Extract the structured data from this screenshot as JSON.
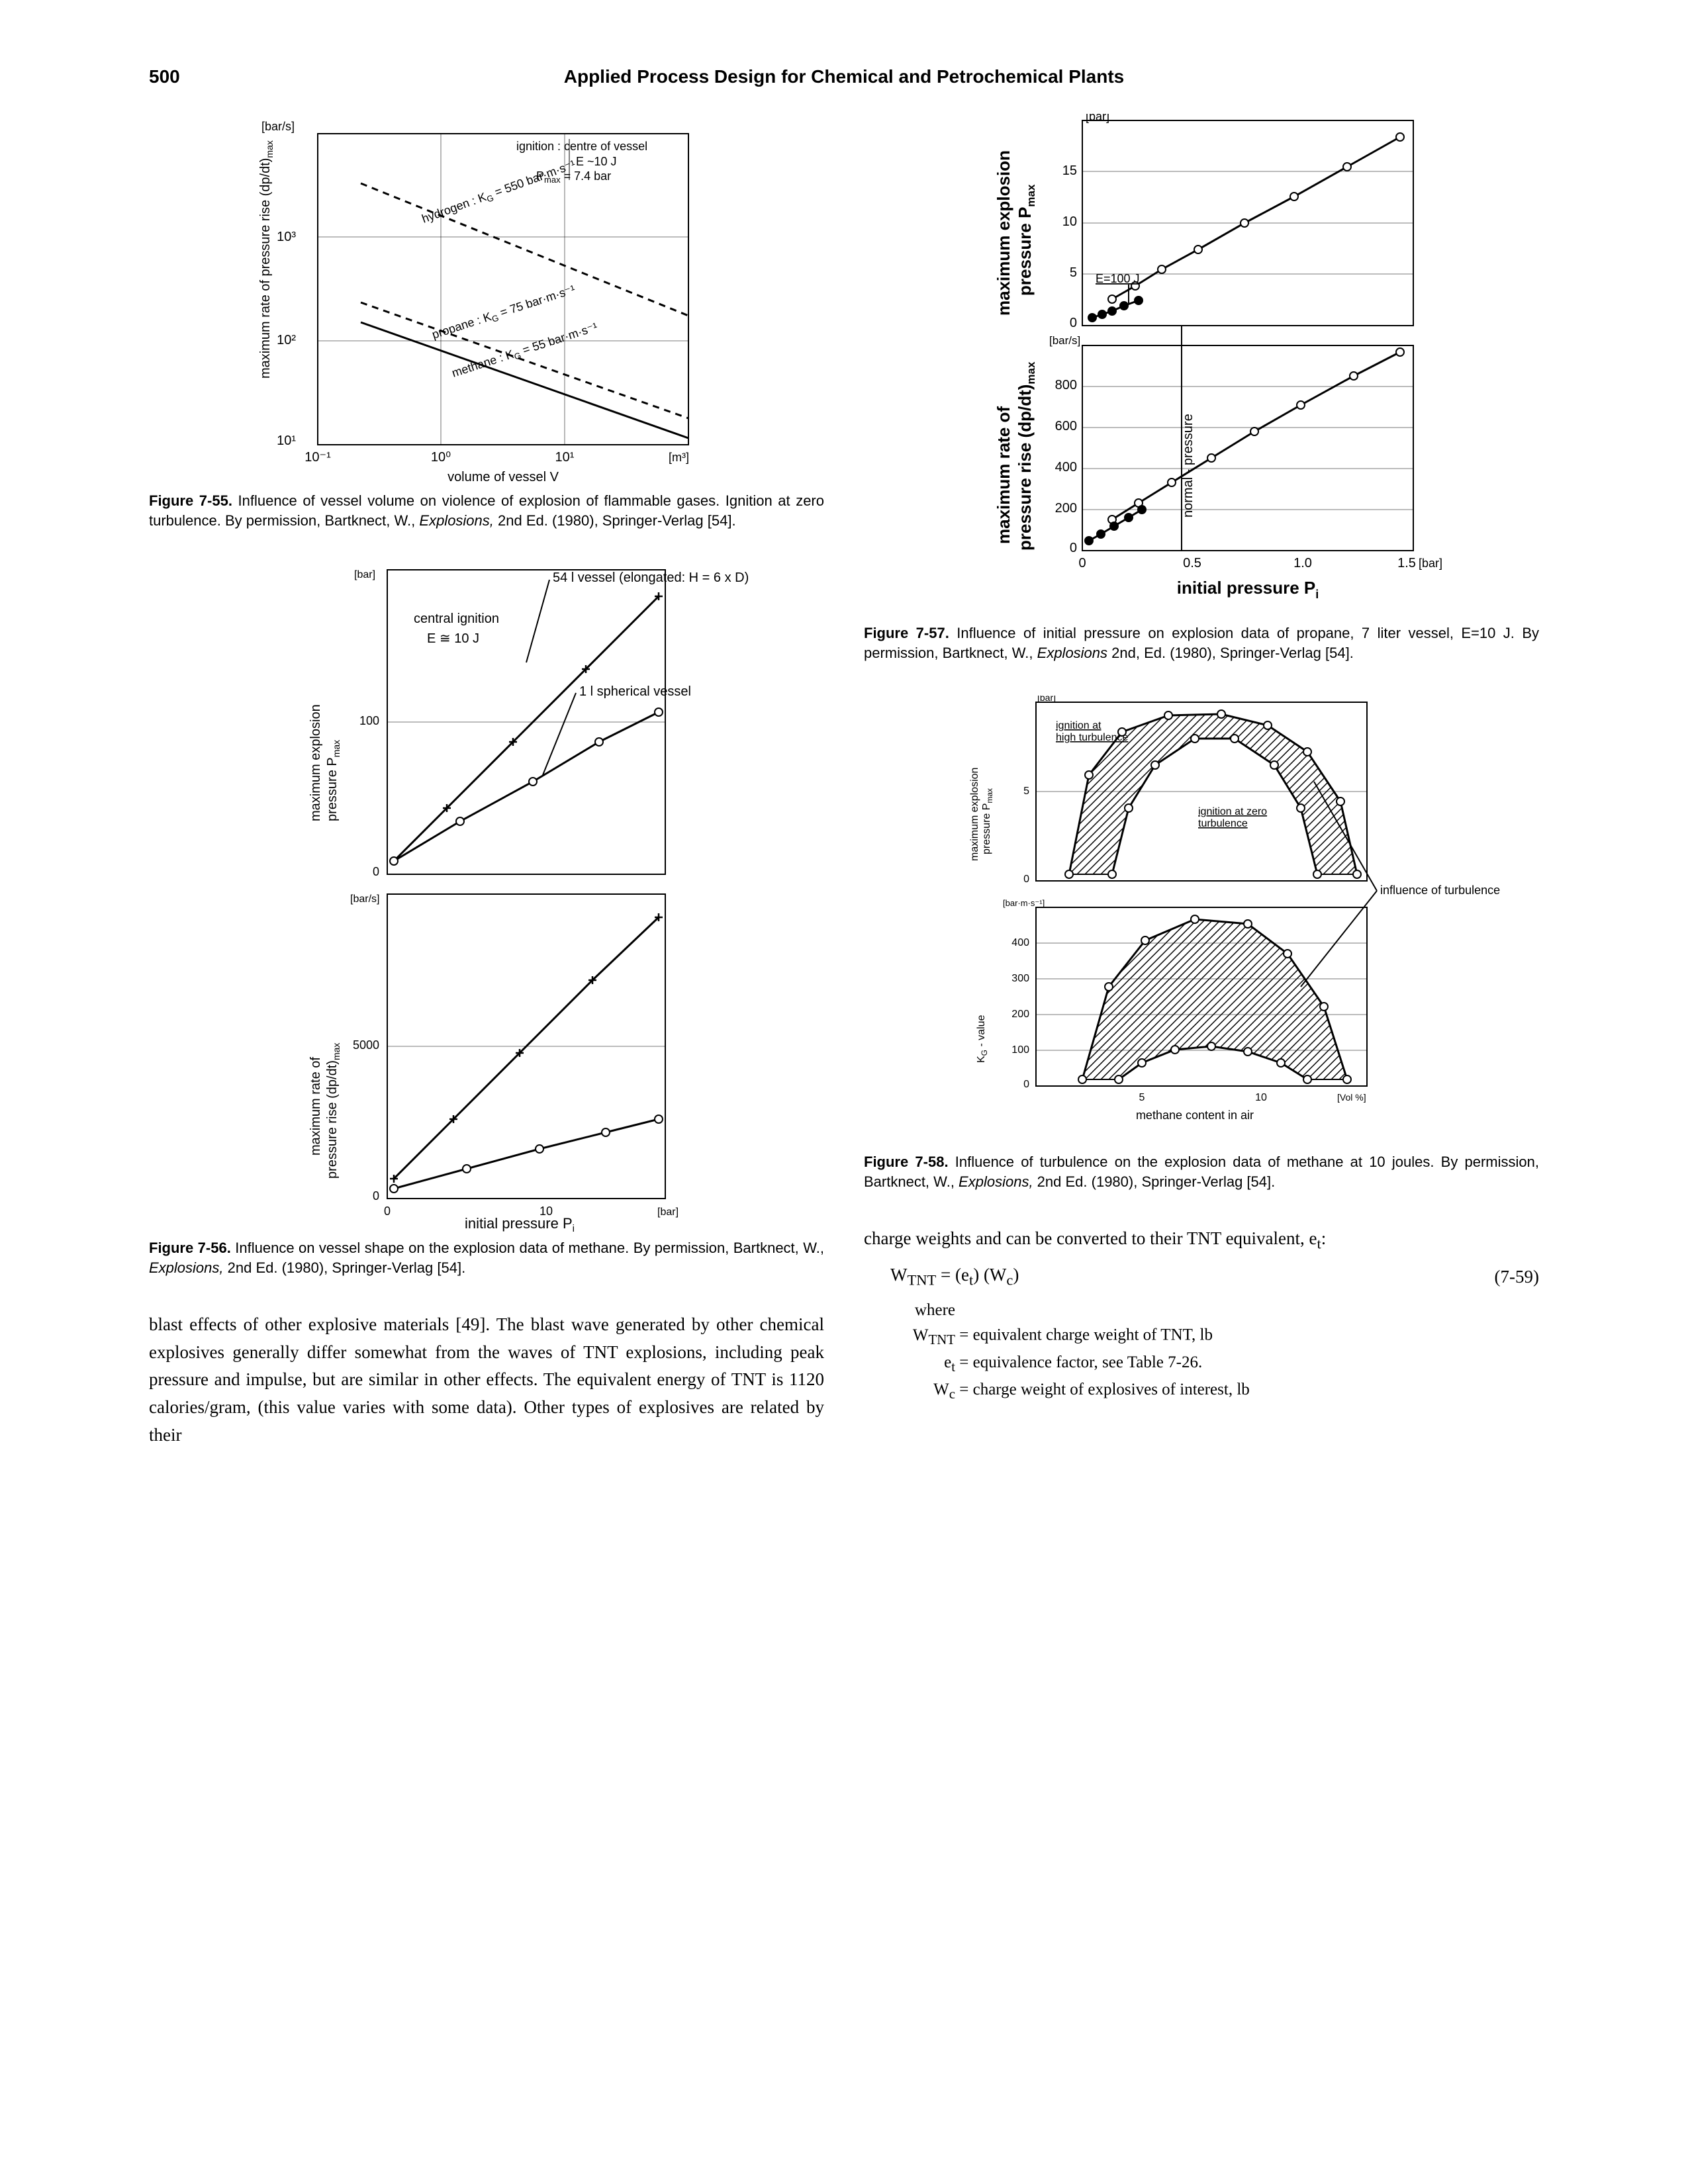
{
  "page_number": "500",
  "header_title": "Applied Process Design for Chemical and Petrochemical Plants",
  "fig55": {
    "caption_bold": "Figure 7-55.",
    "caption_rest": " Influence of vessel volume on violence of explosion of flammable gases. Ignition at zero turbulence. By permission, Bartknect, W., ",
    "caption_italic": "Explosions,",
    "caption_tail": " 2nd Ed. (1980), Springer-Verlag [54].",
    "y_unit": "[bar/s]",
    "y_label": "maximum rate of pressure rise  (dp/dt)",
    "y_label_sub": "max",
    "x_unit": "[m³]",
    "x_label": "volume of vessel  V",
    "ignition_text": "ignition : centre of vessel",
    "energy_text": "E ~10 J",
    "pmax_text": "P",
    "pmax_sub": "max",
    "pmax_val": "= 7.4 bar",
    "y_ticks": [
      "10¹",
      "10²",
      "10³"
    ],
    "x_ticks": [
      "10⁻¹",
      "10⁰",
      "10¹"
    ],
    "series": [
      {
        "label": "hydrogen : K",
        "sub": "G",
        "tail": " = 550 bar·m·s⁻¹",
        "dash": true,
        "p1": [
          65,
          75
        ],
        "p2": [
          560,
          275
        ]
      },
      {
        "label": "propane : K",
        "sub": "G",
        "tail": " = 75 bar·m·s⁻¹",
        "dash": true,
        "p1": [
          65,
          255
        ],
        "p2": [
          560,
          430
        ]
      },
      {
        "label": "methane : K",
        "sub": "G",
        "tail": " = 55 bar·m·s⁻¹",
        "dash": false,
        "p1": [
          65,
          285
        ],
        "p2": [
          560,
          460
        ]
      }
    ]
  },
  "fig56": {
    "caption_bold": "Figure 7-56.",
    "caption_rest": " Influence on vessel shape on the explosion data of methane. By permission, Bartknect, W., ",
    "caption_italic": "Explosions,",
    "caption_tail": " 2nd Ed. (1980), Springer-Verlag [54].",
    "top": {
      "y_unit": "[bar]",
      "y_label": "maximum explosion",
      "y_label2": "pressure  P",
      "y_label2_sub": "max",
      "y_ticks": [
        "0",
        "100"
      ],
      "note1": "central ignition",
      "note2": "E ≅ 10 J",
      "legend1": "54 l  vessel (elongated: H = 6 x D)",
      "legend2": "1 l  spherical vessel",
      "s1": [
        [
          70,
          440
        ],
        [
          150,
          360
        ],
        [
          250,
          260
        ],
        [
          360,
          150
        ],
        [
          470,
          40
        ]
      ],
      "s2": [
        [
          70,
          440
        ],
        [
          170,
          380
        ],
        [
          280,
          320
        ],
        [
          380,
          260
        ],
        [
          470,
          215
        ]
      ]
    },
    "bot": {
      "y_unit": "[bar/s]",
      "y_label": "maximum rate of",
      "y_label2": "pressure  rise  (dp/dt)",
      "y_label2_sub": "max",
      "y_ticks": [
        "0",
        "5000"
      ],
      "x_label": "initial pressure  P",
      "x_label_sub": "i",
      "x_ticks": [
        "0",
        "10"
      ],
      "x_unit": "[bar]",
      "s1": [
        [
          70,
          430
        ],
        [
          160,
          340
        ],
        [
          260,
          240
        ],
        [
          370,
          130
        ],
        [
          470,
          35
        ]
      ],
      "s2": [
        [
          70,
          445
        ],
        [
          180,
          415
        ],
        [
          290,
          385
        ],
        [
          390,
          360
        ],
        [
          470,
          340
        ]
      ]
    }
  },
  "fig57": {
    "caption_bold": "Figure 7-57.",
    "caption_rest": " Influence of initial pressure on explosion data of propane, 7 liter vessel, E=10 J. By permission, Bartknect, W., ",
    "caption_italic": "Explosions",
    "caption_tail": " 2nd, Ed. (1980), Springer-Verlag [54].",
    "top": {
      "y_unit": "[bar]",
      "y_label": "maximum  explosion",
      "y_label2": "pressure  P",
      "y_label2_sub": "max",
      "y_ticks": [
        "0",
        "5",
        "10",
        "15"
      ],
      "note": "E=100 J",
      "open": [
        [
          95,
          270
        ],
        [
          130,
          250
        ],
        [
          170,
          225
        ],
        [
          225,
          195
        ],
        [
          295,
          155
        ],
        [
          370,
          115
        ],
        [
          450,
          70
        ],
        [
          530,
          25
        ]
      ],
      "filled": [
        [
          65,
          298
        ],
        [
          80,
          293
        ],
        [
          95,
          288
        ],
        [
          113,
          280
        ],
        [
          135,
          272
        ]
      ]
    },
    "bot": {
      "y_unit": "[bar/s]",
      "y_label": "maximum rate of",
      "y_label2": "pressure rise (dp/dt)",
      "y_label2_sub": "max",
      "y_ticks": [
        "0",
        "200",
        "400",
        "600",
        "800"
      ],
      "vlabel": "normal - pressure",
      "open": [
        [
          95,
          263
        ],
        [
          135,
          238
        ],
        [
          185,
          207
        ],
        [
          245,
          170
        ],
        [
          310,
          130
        ],
        [
          380,
          90
        ],
        [
          460,
          46
        ],
        [
          530,
          10
        ]
      ],
      "filled": [
        [
          60,
          295
        ],
        [
          78,
          285
        ],
        [
          98,
          273
        ],
        [
          120,
          260
        ],
        [
          140,
          248
        ]
      ]
    },
    "x_ticks": [
      "0",
      "0.5",
      "1.0",
      "1.5"
    ],
    "x_unit": "[bar]",
    "x_label": "initial  pressure  P",
    "x_label_sub": "i"
  },
  "fig58": {
    "caption_bold": "Figure 7-58.",
    "caption_rest": " Influence of turbulence on the explosion data of methane at 10 joules. By permission, Bartknect, W., ",
    "caption_italic": "Explosions,",
    "caption_tail": " 2nd Ed. (1980), Springer-Verlag [54].",
    "top": {
      "y_unit": "[bar]",
      "y_label": "maximum explosion",
      "y_label2": "pressure  P",
      "y_label2_sub": "max",
      "y_ticks": [
        "0",
        "5"
      ],
      "note_hi": "ignition at",
      "note_hi2": "high turbulence",
      "note_lo": "ignition at zero",
      "note_lo2": "turbulence",
      "outer": [
        [
          100,
          260
        ],
        [
          130,
          110
        ],
        [
          180,
          45
        ],
        [
          250,
          20
        ],
        [
          330,
          18
        ],
        [
          400,
          35
        ],
        [
          460,
          75
        ],
        [
          510,
          150
        ],
        [
          535,
          260
        ]
      ],
      "inner": [
        [
          165,
          260
        ],
        [
          190,
          160
        ],
        [
          230,
          95
        ],
        [
          290,
          55
        ],
        [
          350,
          55
        ],
        [
          410,
          95
        ],
        [
          450,
          160
        ],
        [
          475,
          260
        ]
      ]
    },
    "bot": {
      "y_unit": "[bar·m·s⁻¹]",
      "y_label": "K",
      "y_label_sub": "G",
      "y_label_tail": " - value",
      "y_ticks": [
        "0",
        "100",
        "200",
        "300",
        "400"
      ],
      "x_unit": "[Vol %]",
      "x_label": "methane  content  in  air",
      "x_ticks": [
        "5",
        "10"
      ],
      "outer": [
        [
          120,
          260
        ],
        [
          160,
          120
        ],
        [
          215,
          50
        ],
        [
          290,
          18
        ],
        [
          370,
          25
        ],
        [
          430,
          70
        ],
        [
          485,
          150
        ],
        [
          520,
          260
        ]
      ],
      "inner": [
        [
          175,
          260
        ],
        [
          210,
          235
        ],
        [
          260,
          215
        ],
        [
          315,
          210
        ],
        [
          370,
          218
        ],
        [
          420,
          235
        ],
        [
          460,
          260
        ]
      ]
    },
    "side_label": "influence of turbulence"
  },
  "body_left": "blast effects of other explosive materials [49]. The blast wave generated by other chemical explosives generally differ somewhat from the waves of TNT explosions, including peak pressure and impulse, but are similar in other effects. The equivalent energy of TNT is 1120 calories/gram, (this value varies with some data). Other types of explosives are related by their",
  "body_right_intro": "charge weights and can be converted to their TNT equivalent, e",
  "body_right_intro_sub": "t",
  "body_right_intro_tail": ":",
  "equation": {
    "text": "W",
    "sub1": "TNT",
    "mid": " = (e",
    "sub2": "t",
    "mid2": ")  (W",
    "sub3": "c",
    "tail": ")",
    "num": "(7-59)"
  },
  "where": {
    "l1a": "where  W",
    "l1sub": "TNT",
    "l1b": " = equivalent charge weight of TNT, lb",
    "l2a": "e",
    "l2sub": "t",
    "l2b": " = equivalence factor, see Table 7-26.",
    "l3a": "W",
    "l3sub": "c",
    "l3b": " = charge weight of explosives of interest, lb"
  }
}
